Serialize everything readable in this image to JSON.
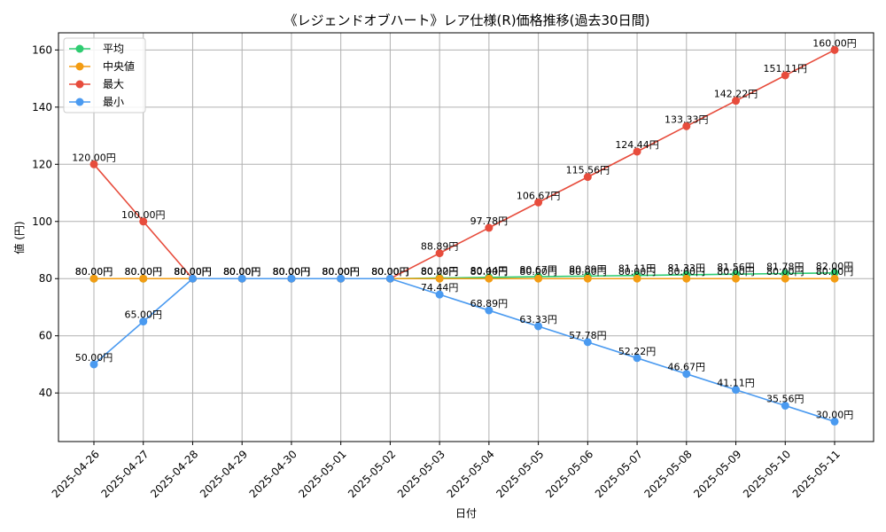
{
  "chart_data": {
    "type": "line",
    "title": "《レジェンドオブハート》レア仕様(R)価格推移(過去30日間)",
    "xlabel": "日付",
    "ylabel": "値 (円)",
    "unit": "円",
    "categories": [
      "2025-04-26",
      "2025-04-27",
      "2025-04-28",
      "2025-04-29",
      "2025-04-30",
      "2025-05-01",
      "2025-05-02",
      "2025-05-03",
      "2025-05-04",
      "2025-05-05",
      "2025-05-06",
      "2025-05-07",
      "2025-05-08",
      "2025-05-09",
      "2025-05-10",
      "2025-05-11"
    ],
    "ylim": [
      23,
      166
    ],
    "yticks": [
      40,
      60,
      80,
      100,
      120,
      140,
      160
    ],
    "grid": true,
    "legend_position": "top-left",
    "series": [
      {
        "name": "平均",
        "color": "#2ecc71",
        "values": [
          80,
          80,
          80,
          80,
          80,
          80,
          80,
          80.22,
          80.44,
          80.67,
          80.89,
          81.11,
          81.33,
          81.56,
          81.78,
          82.0
        ]
      },
      {
        "name": "中央値",
        "color": "#f39c12",
        "values": [
          80,
          80,
          80,
          80,
          80,
          80,
          80,
          80,
          80,
          80,
          80,
          80,
          80,
          80,
          80,
          80
        ]
      },
      {
        "name": "最大",
        "color": "#e74c3c",
        "values": [
          120,
          100,
          80,
          80,
          80,
          80,
          80,
          88.89,
          97.78,
          106.67,
          115.56,
          124.44,
          133.33,
          142.22,
          151.11,
          160.0
        ]
      },
      {
        "name": "最小",
        "color": "#4a9af0",
        "values": [
          50,
          65,
          80,
          80,
          80,
          80,
          80,
          74.44,
          68.89,
          63.33,
          57.78,
          52.22,
          46.67,
          41.11,
          35.56,
          30.0
        ]
      }
    ]
  }
}
